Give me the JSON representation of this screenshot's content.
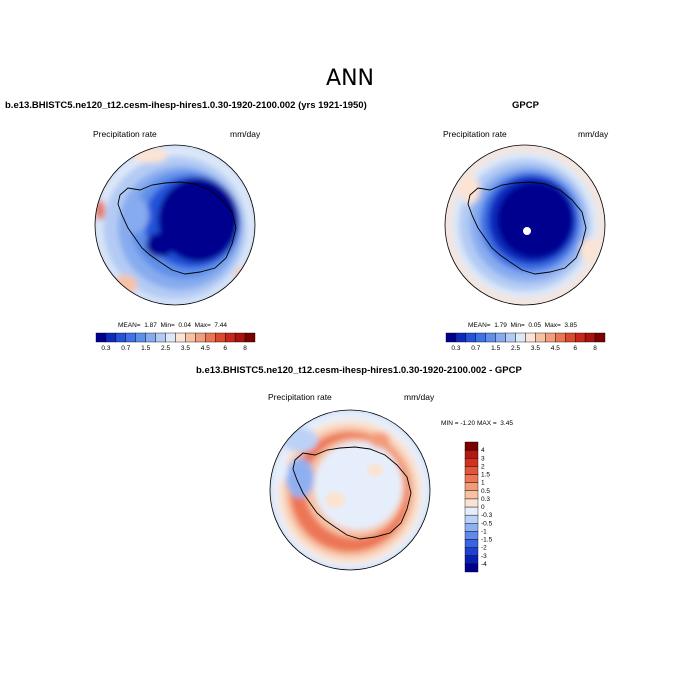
{
  "figure": {
    "title": "ANN"
  },
  "colors": {
    "precip_scale": [
      "#00008f",
      "#0c2bbd",
      "#2453d9",
      "#3f72e4",
      "#5f8fe9",
      "#87abef",
      "#b3cbf4",
      "#dde8f8",
      "#fbe4d4",
      "#f7c2a4",
      "#f09e7c",
      "#e97555",
      "#dc4a2e",
      "#c7271a",
      "#a8130e",
      "#7b0000"
    ],
    "diff_scale": [
      "#00008f",
      "#0a1fb0",
      "#1f3fcf",
      "#3a63e3",
      "#6189ea",
      "#8fb0f0",
      "#bcd1f6",
      "#e6eefb",
      "#fbe3d2",
      "#f7c2a4",
      "#f29b78",
      "#ec7655",
      "#e25538",
      "#cf3320",
      "#b01a10",
      "#7b0000"
    ],
    "coastline": "#000000"
  },
  "chart_data": [
    {
      "type": "heatmap",
      "projection": "south-polar-stereographic",
      "title": "b.e13.BHISTC5.ne120_t12.cesm-ihesp-hires1.0.30-1920-2100.002 (yrs 1921-1950)",
      "variable": "Precipitation rate",
      "units": "mm/day",
      "stats": {
        "mean_label": "MEAN=",
        "mean": "1.87",
        "min_label": "Min=",
        "min": "0.04",
        "max_label": "Max=",
        "max": "7.44"
      },
      "colorbar": {
        "orientation": "horizontal",
        "tick_labels": [
          "0.3",
          "0.7",
          "1.5",
          "2.5",
          "3.5",
          "4.5",
          "6",
          "8"
        ]
      }
    },
    {
      "type": "heatmap",
      "projection": "south-polar-stereographic",
      "title": "GPCP",
      "variable": "Precipitation rate",
      "units": "mm/day",
      "stats": {
        "mean_label": "MEAN=",
        "mean": "1.79",
        "min_label": "Min=",
        "min": "0.05",
        "max_label": "Max=",
        "max": "3.85"
      },
      "colorbar": {
        "orientation": "horizontal",
        "tick_labels": [
          "0.3",
          "0.7",
          "1.5",
          "2.5",
          "3.5",
          "4.5",
          "6",
          "8"
        ]
      }
    },
    {
      "type": "heatmap",
      "projection": "south-polar-stereographic",
      "title": "b.e13.BHISTC5.ne120_t12.cesm-ihesp-hires1.0.30-1920-2100.002 - GPCP",
      "variable": "Precipitation rate",
      "units": "mm/day",
      "stats": {
        "min_label": "MIN =",
        "min": "-1.20",
        "max_label": "MAX =",
        "max": "3.45"
      },
      "colorbar": {
        "orientation": "vertical",
        "tick_labels": [
          "4",
          "3",
          "2",
          "1.5",
          "1",
          "0.5",
          "0.3",
          "0",
          "-0.3",
          "-0.5",
          "-1",
          "-1.5",
          "-2",
          "-3",
          "-4"
        ]
      }
    }
  ]
}
